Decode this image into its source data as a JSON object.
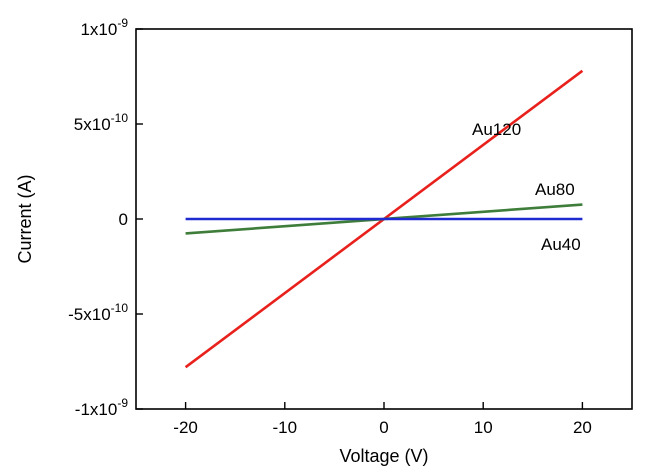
{
  "chart_data": {
    "type": "line",
    "xlabel": "Voltage (V)",
    "ylabel": "Current (A)",
    "xlim": [
      -25,
      25
    ],
    "ylim": [
      -1e-09,
      1e-09
    ],
    "x_ticks": [
      {
        "value": -20,
        "label": "-20"
      },
      {
        "value": -10,
        "label": "-10"
      },
      {
        "value": 0,
        "label": "0"
      },
      {
        "value": 10,
        "label": "10"
      },
      {
        "value": 20,
        "label": "20"
      }
    ],
    "y_ticks": [
      {
        "value": 1e-09,
        "base": "1x10",
        "exp": "-9"
      },
      {
        "value": 5e-10,
        "base": "5x10",
        "exp": "-10"
      },
      {
        "value": 0,
        "base": "0",
        "exp": ""
      },
      {
        "value": -5e-10,
        "base": "-5x10",
        "exp": "-10"
      },
      {
        "value": -1e-09,
        "base": "-1x10",
        "exp": "-9"
      }
    ],
    "grid": false,
    "series": [
      {
        "name": "Au120",
        "color": "#e8211d",
        "x": [
          -20,
          20
        ],
        "y": [
          -7.8e-10,
          7.8e-10
        ]
      },
      {
        "name": "Au80",
        "color": "#3f7d3a",
        "x": [
          -20,
          20
        ],
        "y": [
          -7.6e-11,
          7.6e-11
        ]
      },
      {
        "name": "Au40",
        "color": "#1f2bd1",
        "x": [
          -20,
          20
        ],
        "y": [
          0,
          0
        ]
      }
    ]
  }
}
